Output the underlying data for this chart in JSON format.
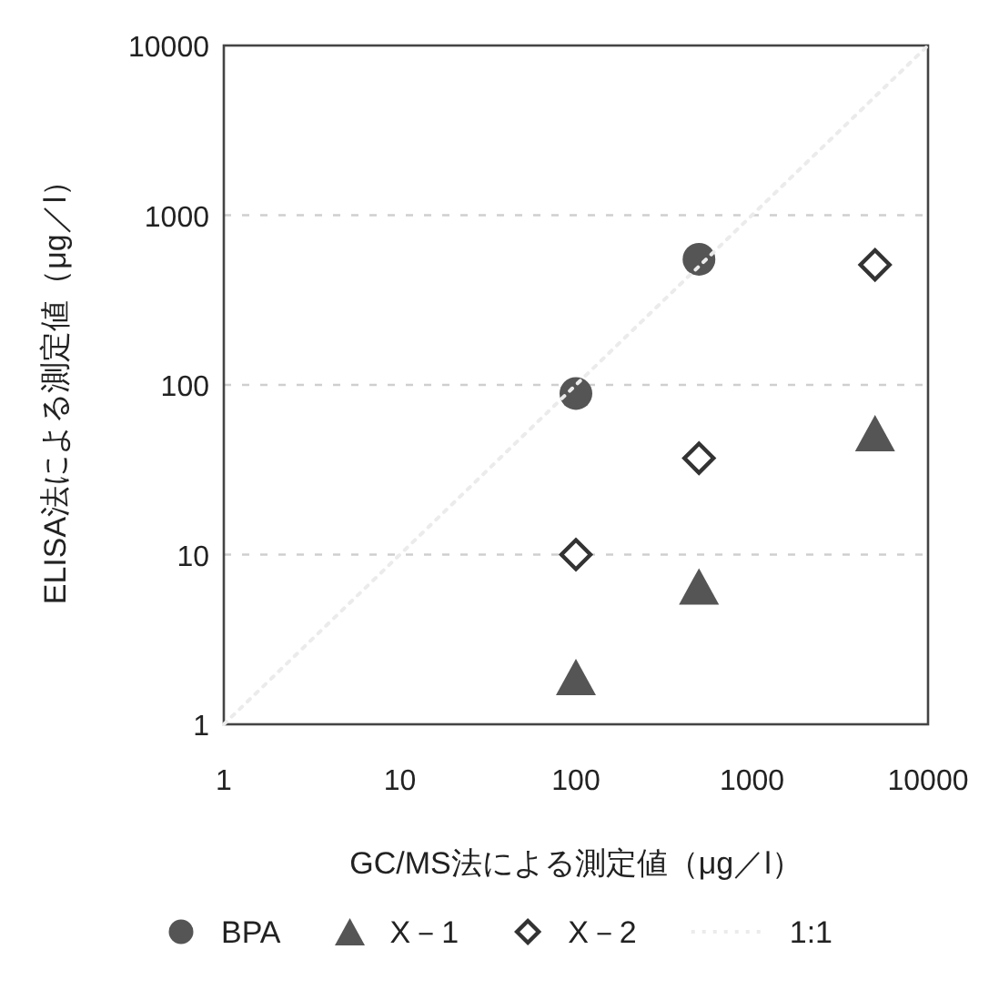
{
  "chart_data": {
    "type": "scatter",
    "xlabel": "GC/MS法による測定値（μg／l）",
    "ylabel": "ELISA法による測定値（μg／l）",
    "log": "xy",
    "xlim": [
      1,
      10000
    ],
    "ylim": [
      1,
      10000
    ],
    "xticks": [
      1,
      10,
      100,
      1000,
      10000
    ],
    "yticks": [
      1,
      10,
      100,
      1000,
      10000
    ],
    "grid": "y",
    "legend": "bottom",
    "series": [
      {
        "name": "BPA",
        "color": "#555555",
        "marker": "circle",
        "x": [
          100,
          500
        ],
        "values": [
          89,
          550
        ]
      },
      {
        "name": "X－1",
        "color": "#555555",
        "marker": "triangle",
        "x": [
          100,
          500,
          5000
        ],
        "values": [
          1.9,
          6.5,
          52
        ]
      },
      {
        "name": "X－2",
        "color": "#333333",
        "marker": "diamond",
        "x": [
          100,
          500,
          5000
        ],
        "values": [
          10,
          37,
          510
        ]
      },
      {
        "name": "1:1",
        "type": "line",
        "color": "#ebebeb",
        "line_style": "dotted",
        "marker": "none",
        "x": [
          1,
          10000
        ],
        "values": [
          1,
          10000
        ]
      }
    ]
  }
}
